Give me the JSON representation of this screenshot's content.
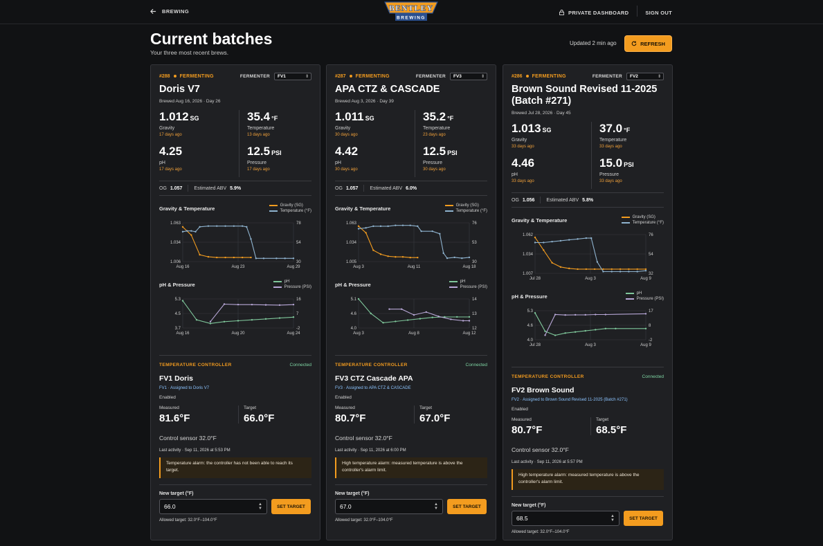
{
  "header": {
    "back_label": "BREWING",
    "brand_top": "BENTLEY",
    "brand_bottom": "BREWING",
    "private_label": "PRIVATE DASHBOARD",
    "signout_label": "SIGN OUT"
  },
  "page": {
    "title": "Current batches",
    "subtitle": "Your three most recent brews.",
    "updated": "Updated 2 min ago",
    "refresh_label": "REFRESH"
  },
  "labels": {
    "fermenter": "FERMENTER",
    "gravity": "Gravity",
    "temperature": "Temperature",
    "ph": "pH",
    "pressure": "Pressure",
    "og": "OG",
    "abv": "Estimated ABV",
    "gt_title": "Gravity & Temperature",
    "pp_title": "pH & Pressure",
    "leg_gravity": "Gravity (SG)",
    "leg_temp": "Temperature (°F)",
    "leg_ph": "pH",
    "leg_pressure": "Pressure (PSI)",
    "tc_title": "TEMPERATURE CONTROLLER",
    "measured": "Measured",
    "target": "Target",
    "new_target": "New target (°F)",
    "set_target": "SET TARGET",
    "allowed": "Allowed target: 32.0°F–104.0°F",
    "units": {
      "sg": "SG",
      "f": "°F",
      "psi": "PSI"
    }
  },
  "colors": {
    "accent": "#f39c1f",
    "gravity": "#f39c1f",
    "temp": "#8fb3cf",
    "ph": "#7fc79b",
    "pressure": "#b9a8d8",
    "connected": "#7fd6a4"
  },
  "cards": [
    {
      "batch": "#288",
      "status": "FERMENTING",
      "fermenter": "FV1",
      "name": "Doris V7",
      "brewed": "Brewed Aug 16, 2026 · Day 26",
      "gravity": "1.012",
      "gravity_ago": "17 days ago",
      "temp": "35.4",
      "temp_ago": "13 days ago",
      "ph": "4.25",
      "ph_ago": "17 days ago",
      "pressure": "12.5",
      "pressure_ago": "17 days ago",
      "og": "1.057",
      "abv": "5.9%",
      "tc": {
        "status": "Connected",
        "name": "FV1 Doris",
        "assigned": "FV1 · Assigned to Doris V7",
        "enabled": "Enabled",
        "measured": "81.6°F",
        "target": "66.0°F",
        "control": "Control sensor 32.0°F",
        "last": "Last activity · Sep 11, 2026 at 5:53 PM",
        "alarm": "Temperature alarm: the controller has not been able to reach its target.",
        "input": "66.0"
      }
    },
    {
      "batch": "#287",
      "status": "FERMENTING",
      "fermenter": "FV3",
      "name": "APA CTZ & CASCADE",
      "brewed": "Brewed Aug 3, 2026 · Day 39",
      "gravity": "1.011",
      "gravity_ago": "30 days ago",
      "temp": "35.2",
      "temp_ago": "23 days ago",
      "ph": "4.42",
      "ph_ago": "30 days ago",
      "pressure": "12.5",
      "pressure_ago": "30 days ago",
      "og": "1.057",
      "abv": "6.0%",
      "tc": {
        "status": "Connected",
        "name": "FV3 CTZ Cascade APA",
        "assigned": "FV3 · Assigned to APA CTZ & CASCADE",
        "enabled": "Enabled",
        "measured": "80.7°F",
        "target": "67.0°F",
        "control": "Control sensor 32.0°F",
        "last": "Last activity · Sep 11, 2026 at 6:00 PM",
        "alarm": "High temperature alarm: measured temperature is above the controller's alarm limit.",
        "input": "67.0"
      }
    },
    {
      "batch": "#286",
      "status": "FERMENTING",
      "fermenter": "FV2",
      "name": "Brown Sound Revised 11-2025 (Batch #271)",
      "brewed": "Brewed Jul 28, 2026 · Day 45",
      "gravity": "1.013",
      "gravity_ago": "33 days ago",
      "temp": "37.0",
      "temp_ago": "33 days ago",
      "ph": "4.46",
      "ph_ago": "33 days ago",
      "pressure": "15.0",
      "pressure_ago": "33 days ago",
      "og": "1.056",
      "abv": "5.8%",
      "tc": {
        "status": "Connected",
        "name": "FV2 Brown Sound",
        "assigned": "FV2 · Assigned to Brown Sound Revised 11-2025 (Batch #271)",
        "enabled": "Enabled",
        "measured": "80.7°F",
        "target": "68.5°F",
        "control": "Control sensor 32.0°F",
        "last": "Last activity · Sep 11, 2026 at 5:57 PM",
        "alarm": "High temperature alarm: measured temperature is above the controller's alarm limit.",
        "input": "68.5"
      }
    }
  ],
  "chart_data": [
    {
      "type": "line",
      "title": "Gravity & Temperature",
      "batch": "#288",
      "x_ticks": [
        "Aug 16",
        "Aug 23",
        "Aug 29"
      ],
      "x_range": [
        0,
        13
      ],
      "y_left": {
        "ticks": [
          "1.063",
          "1.034",
          "1.006"
        ],
        "range": [
          1.006,
          1.063
        ]
      },
      "y_right": {
        "ticks": [
          "78",
          "54",
          "30"
        ],
        "range": [
          30,
          78
        ]
      },
      "series": [
        {
          "name": "Gravity (SG)",
          "axis": "left",
          "points": [
            [
              0,
              1.057
            ],
            [
              1,
              1.045
            ],
            [
              2,
              1.016
            ],
            [
              3,
              1.013
            ],
            [
              4,
              1.012
            ],
            [
              5,
              1.012
            ],
            [
              6,
              1.012
            ],
            [
              7,
              1.012
            ],
            [
              8,
              1.012
            ]
          ]
        },
        {
          "name": "Temperature (°F)",
          "axis": "right",
          "points": [
            [
              0,
              67
            ],
            [
              0.5,
              68
            ],
            [
              1,
              68
            ],
            [
              1.5,
              67
            ],
            [
              2,
              73
            ],
            [
              3,
              74
            ],
            [
              4,
              74
            ],
            [
              5,
              74
            ],
            [
              6,
              74
            ],
            [
              7,
              74
            ],
            [
              7.5,
              73
            ],
            [
              8,
              58
            ],
            [
              8.6,
              34
            ],
            [
              9.5,
              34
            ],
            [
              11,
              34
            ],
            [
              12,
              34
            ],
            [
              13,
              34
            ]
          ]
        }
      ]
    },
    {
      "type": "line",
      "title": "pH & Pressure",
      "batch": "#288",
      "x_ticks": [
        "Aug 16",
        "Aug 20",
        "Aug 24"
      ],
      "x_range": [
        0,
        8
      ],
      "y_left": {
        "ticks": [
          "5.3",
          "4.5",
          "3.7"
        ],
        "range": [
          3.7,
          5.3
        ]
      },
      "y_right": {
        "ticks": [
          "16",
          "7",
          "-2"
        ],
        "range": [
          -2,
          16
        ]
      },
      "series": [
        {
          "name": "pH",
          "axis": "left",
          "points": [
            [
              0,
              5.2
            ],
            [
              1,
              4.15
            ],
            [
              2,
              3.95
            ],
            [
              3,
              4.05
            ],
            [
              4,
              4.1
            ],
            [
              5,
              4.15
            ],
            [
              6,
              4.2
            ],
            [
              7,
              4.25
            ],
            [
              8,
              4.3
            ]
          ]
        },
        {
          "name": "Pressure (PSI)",
          "axis": "right",
          "points": [
            [
              2,
              2
            ],
            [
              3,
              12.8
            ],
            [
              4,
              12.5
            ],
            [
              5,
              12.5
            ],
            [
              6,
              12.3
            ],
            [
              7,
              12.2
            ],
            [
              8,
              12.5
            ]
          ]
        }
      ]
    },
    {
      "type": "line",
      "title": "Gravity & Temperature",
      "batch": "#287",
      "x_ticks": [
        "Aug 3",
        "Aug 11",
        "Aug 18"
      ],
      "x_range": [
        0,
        15
      ],
      "y_left": {
        "ticks": [
          "1.063",
          "1.034",
          "1.005"
        ],
        "range": [
          1.005,
          1.063
        ]
      },
      "y_right": {
        "ticks": [
          "76",
          "53",
          "30"
        ],
        "range": [
          30,
          76
        ]
      },
      "series": [
        {
          "name": "Gravity (SG)",
          "axis": "left",
          "points": [
            [
              0,
              1.058
            ],
            [
              1,
              1.048
            ],
            [
              2,
              1.022
            ],
            [
              3,
              1.016
            ],
            [
              4,
              1.013
            ],
            [
              5,
              1.012
            ],
            [
              6,
              1.012
            ],
            [
              7,
              1.011
            ],
            [
              8,
              1.011
            ]
          ]
        },
        {
          "name": "Temperature (°F)",
          "axis": "right",
          "points": [
            [
              0,
              69
            ],
            [
              1,
              70
            ],
            [
              2,
              72
            ],
            [
              3,
              72
            ],
            [
              4,
              72
            ],
            [
              5,
              73
            ],
            [
              6,
              73
            ],
            [
              7,
              73
            ],
            [
              8,
              72
            ],
            [
              8.5,
              66
            ],
            [
              10,
              66
            ],
            [
              11,
              63
            ],
            [
              11.5,
              40
            ],
            [
              12,
              34
            ],
            [
              13,
              35
            ],
            [
              14,
              34
            ],
            [
              15,
              35
            ]
          ]
        }
      ]
    },
    {
      "type": "line",
      "title": "pH & Pressure",
      "batch": "#287",
      "x_ticks": [
        "Aug 3",
        "Aug 8",
        "Aug 12"
      ],
      "x_range": [
        0,
        9
      ],
      "y_left": {
        "ticks": [
          "5.1",
          "4.6",
          "4.0"
        ],
        "range": [
          4.0,
          5.1
        ]
      },
      "y_right": {
        "ticks": [
          "14",
          "13",
          "12"
        ],
        "range": [
          12,
          14
        ]
      },
      "series": [
        {
          "name": "pH",
          "axis": "left",
          "points": [
            [
              0,
              5.1
            ],
            [
              1,
              4.55
            ],
            [
              2,
              4.2
            ],
            [
              3,
              4.25
            ],
            [
              4,
              4.3
            ],
            [
              5,
              4.35
            ],
            [
              6,
              4.4
            ],
            [
              7,
              4.42
            ],
            [
              8,
              4.42
            ],
            [
              9,
              4.42
            ]
          ]
        },
        {
          "name": "Pressure (PSI)",
          "axis": "right",
          "points": [
            [
              2.5,
              13.3
            ],
            [
              3.5,
              13.3
            ],
            [
              4.5,
              12.9
            ],
            [
              5.5,
              13.1
            ],
            [
              6.5,
              12.8
            ],
            [
              7.5,
              12.6
            ],
            [
              8.5,
              12.5
            ],
            [
              9,
              12.5
            ]
          ]
        }
      ]
    },
    {
      "type": "line",
      "title": "Gravity & Temperature",
      "batch": "#286",
      "x_ticks": [
        "Jul 28",
        "Aug 3",
        "Aug 9"
      ],
      "x_range": [
        0,
        13
      ],
      "y_left": {
        "ticks": [
          "1.062",
          "1.034",
          "1.007"
        ],
        "range": [
          1.007,
          1.062
        ]
      },
      "y_right": {
        "ticks": [
          "76",
          "54",
          "32"
        ],
        "range": [
          32,
          76
        ]
      },
      "series": [
        {
          "name": "Gravity (SG)",
          "axis": "left",
          "points": [
            [
              0,
              1.058
            ],
            [
              1,
              1.04
            ],
            [
              2,
              1.022
            ],
            [
              3,
              1.016
            ],
            [
              4,
              1.014
            ],
            [
              5,
              1.013
            ],
            [
              6,
              1.013
            ],
            [
              7,
              1.013
            ],
            [
              8,
              1.013
            ],
            [
              9,
              1.013
            ],
            [
              10,
              1.013
            ],
            [
              11,
              1.013
            ],
            [
              12,
              1.013
            ],
            [
              13,
              1.013
            ]
          ]
        },
        {
          "name": "Temperature (°F)",
          "axis": "right",
          "points": [
            [
              0,
              67
            ],
            [
              1,
              67
            ],
            [
              2,
              68
            ],
            [
              3,
              69
            ],
            [
              4,
              70
            ],
            [
              5,
              71
            ],
            [
              6,
              72
            ],
            [
              6.6,
              72
            ],
            [
              7.3,
              45
            ],
            [
              8,
              34
            ],
            [
              9,
              34
            ],
            [
              10,
              34
            ],
            [
              11,
              34
            ],
            [
              12,
              34
            ],
            [
              13,
              35
            ]
          ]
        }
      ]
    },
    {
      "type": "line",
      "title": "pH & Pressure",
      "batch": "#286",
      "x_ticks": [
        "Jul 28",
        "Aug 3",
        "Aug 9"
      ],
      "x_range": [
        0,
        11
      ],
      "y_left": {
        "ticks": [
          "5.3",
          "4.6",
          "4.0"
        ],
        "range": [
          4.0,
          5.3
        ]
      },
      "y_right": {
        "ticks": [
          "17",
          "8",
          "-2"
        ],
        "range": [
          -2,
          17
        ]
      },
      "series": [
        {
          "name": "pH",
          "axis": "left",
          "points": [
            [
              0,
              5.2
            ],
            [
              1,
              4.38
            ],
            [
              2,
              4.2
            ],
            [
              3,
              4.3
            ],
            [
              4,
              4.35
            ],
            [
              5,
              4.4
            ],
            [
              6,
              4.45
            ],
            [
              7,
              4.5
            ],
            [
              8,
              4.5
            ],
            [
              11,
              4.5
            ]
          ]
        },
        {
          "name": "Pressure (PSI)",
          "axis": "right",
          "points": [
            [
              1,
              1
            ],
            [
              2,
              14.5
            ],
            [
              3,
              14.2
            ],
            [
              4,
              14.3
            ],
            [
              5,
              14.3
            ],
            [
              6,
              14.5
            ],
            [
              7,
              14.5
            ],
            [
              11,
              15
            ]
          ]
        }
      ]
    }
  ]
}
